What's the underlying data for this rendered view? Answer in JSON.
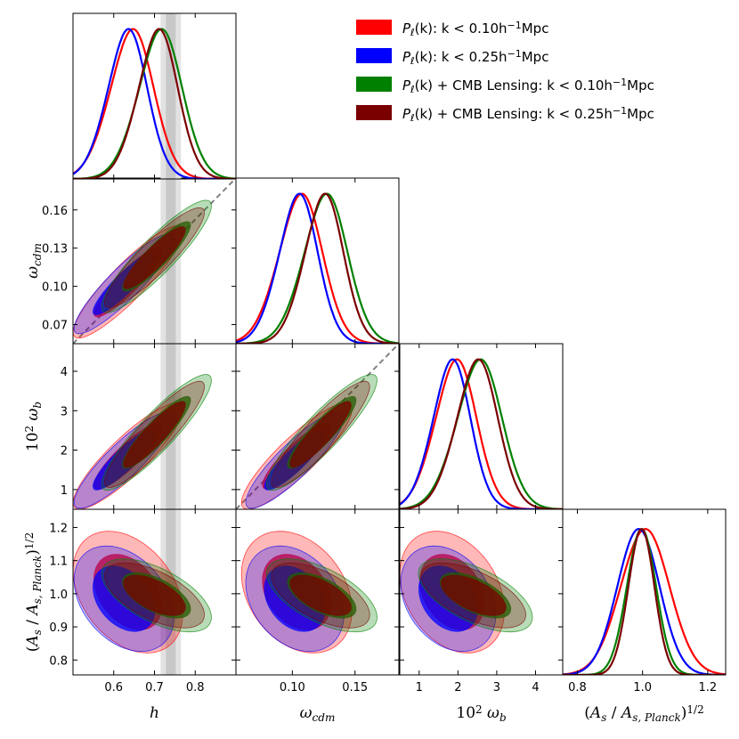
{
  "chart_data": {
    "type": "triangle-corner-plot",
    "title": "",
    "parameters": [
      {
        "key": "h",
        "label": "h",
        "range": [
          0.5,
          0.9
        ],
        "ticks": [
          0.6,
          0.7,
          0.8
        ],
        "tick_labels": [
          "0.6",
          "0.7",
          "0.8"
        ]
      },
      {
        "key": "omega_cdm",
        "label": "ω_cdm",
        "range": [
          0.055,
          0.185
        ],
        "ticks": [
          0.1,
          0.15
        ],
        "tick_labels": [
          "0.10",
          "0.15"
        ],
        "y_ticks": [
          0.07,
          0.1,
          0.13,
          0.16
        ],
        "y_tick_labels": [
          "0.07",
          "0.10",
          "0.13",
          "0.16"
        ]
      },
      {
        "key": "omega_b",
        "label": "10² ω_b",
        "range": [
          0.5,
          4.7
        ],
        "ticks": [
          1,
          2,
          3,
          4
        ],
        "tick_labels": [
          "1",
          "2",
          "3",
          "4"
        ]
      },
      {
        "key": "As",
        "label": "(A_s / A_s,Planck)^1/2",
        "range": [
          0.755,
          1.255
        ],
        "ticks": [
          0.8,
          0.9,
          1.0,
          1.1,
          1.2
        ],
        "tick_labels": [
          "0.8",
          "0.9",
          "1.0",
          "1.1",
          "1.2"
        ],
        "x_ticks": [
          0.8,
          1.0,
          1.2
        ],
        "x_tick_labels": [
          "0.8",
          "1.0",
          "1.2"
        ]
      }
    ],
    "series": [
      {
        "name": "P_ℓ(k): k < 0.10 h⁻¹Mpc",
        "color": "#ff0000",
        "means": [
          0.635,
          0.1035,
          1.85,
          1.005
        ],
        "sigmas": [
          0.055,
          0.018,
          0.55,
          0.075
        ],
        "rho": [
          [
            1,
            0.9,
            0.88,
            -0.35
          ],
          [
            0.9,
            1,
            0.88,
            -0.3
          ],
          [
            0.88,
            0.88,
            1,
            -0.3
          ],
          [
            -0.35,
            -0.3,
            -0.3,
            1
          ]
        ]
      },
      {
        "name": "P_ℓ(k): k < 0.25 h⁻¹Mpc",
        "color": "#0000ff",
        "means": [
          0.625,
          0.102,
          1.75,
          0.985
        ],
        "sigmas": [
          0.05,
          0.016,
          0.5,
          0.065
        ],
        "rho": [
          [
            1,
            0.9,
            0.88,
            -0.35
          ],
          [
            0.9,
            1,
            0.88,
            -0.3
          ],
          [
            0.88,
            0.88,
            1,
            -0.3
          ],
          [
            -0.35,
            -0.3,
            -0.3,
            1
          ]
        ]
      },
      {
        "name": "P_ℓ(k) + CMB Lensing: k < 0.10 h⁻¹Mpc",
        "color": "#008000",
        "means": [
          0.705,
          0.1235,
          2.45,
          0.995
        ],
        "sigmas": [
          0.055,
          0.018,
          0.6,
          0.045
        ],
        "rho": [
          [
            1,
            0.9,
            0.9,
            -0.6
          ],
          [
            0.9,
            1,
            0.9,
            -0.6
          ],
          [
            0.9,
            0.9,
            1,
            -0.6
          ],
          [
            -0.6,
            -0.6,
            -0.6,
            1
          ]
        ]
      },
      {
        "name": "P_ℓ(k) + CMB Lensing: k < 0.25 h⁻¹Mpc",
        "color": "#7a0000",
        "means": [
          0.7,
          0.1225,
          2.4,
          0.995
        ],
        "sigmas": [
          0.05,
          0.016,
          0.55,
          0.04
        ],
        "rho": [
          [
            1,
            0.9,
            0.9,
            -0.6
          ],
          [
            0.9,
            1,
            0.9,
            -0.6
          ],
          [
            0.9,
            0.9,
            1,
            -0.6
          ],
          [
            -0.6,
            -0.6,
            -0.6,
            1
          ]
        ]
      }
    ],
    "h_prior_bands": {
      "outer": [
        0.715,
        0.765
      ],
      "inner": [
        0.728,
        0.752
      ]
    },
    "diagonal_reference": "dashed grey line (ω_b/ω_cdm degeneracy)",
    "legend_placement": "top-right",
    "grid": false
  },
  "legend": {
    "items": [
      {
        "prefix": "P",
        "sub": "ℓ",
        "suffix": "(k): k < 0.10h",
        "sup": "−1",
        "tail": "Mpc"
      },
      {
        "prefix": "P",
        "sub": "ℓ",
        "suffix": "(k): k < 0.25h",
        "sup": "−1",
        "tail": "Mpc"
      },
      {
        "prefix": "P",
        "sub": "ℓ",
        "suffix": "(k) + CMB Lensing: k < 0.10h",
        "sup": "−1",
        "tail": "Mpc"
      },
      {
        "prefix": "P",
        "sub": "ℓ",
        "suffix": "(k) + CMB Lensing: k < 0.25h",
        "sup": "−1",
        "tail": "Mpc"
      }
    ]
  }
}
